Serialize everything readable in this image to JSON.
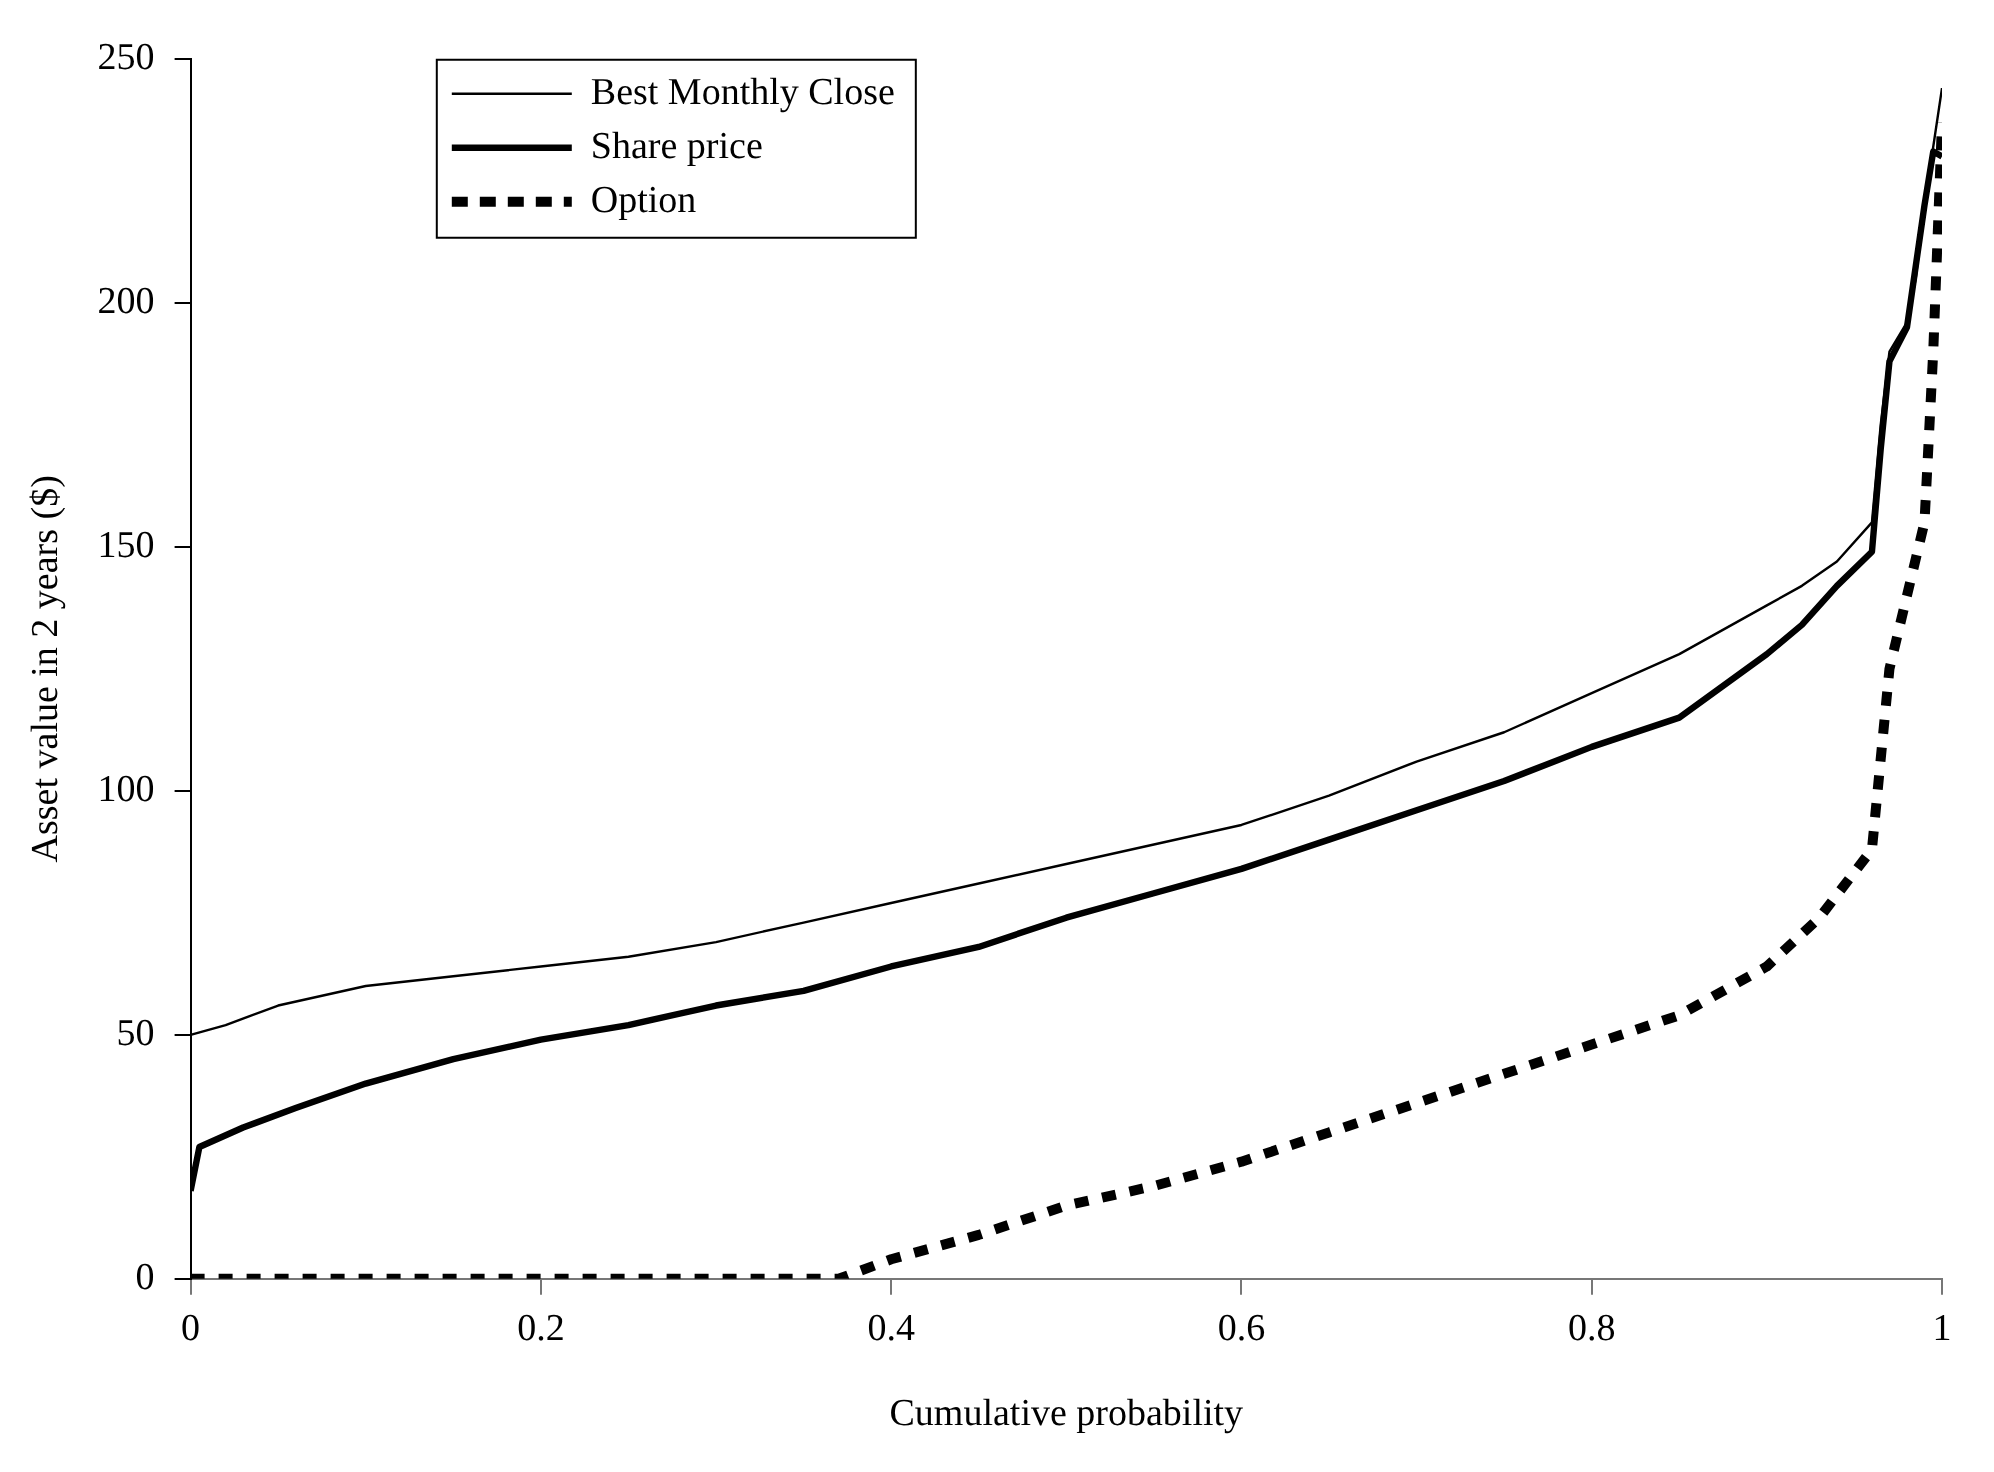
{
  "chart_data": {
    "type": "line",
    "xlabel": "Cumulative probability",
    "ylabel": "Asset value in 2 years ($)",
    "xlim": [
      0,
      1
    ],
    "xticks": [
      0,
      0.2,
      0.4,
      0.6,
      0.8,
      1
    ],
    "ylim": [
      0,
      250
    ],
    "yticks": [
      0,
      50,
      100,
      150,
      200,
      250
    ],
    "grid": false,
    "legend": "top left",
    "marker": "none",
    "series": [
      {
        "name": "Best Monthly Close",
        "color": "#000000",
        "line_style": "solid",
        "x": [
          0,
          0.02,
          0.05,
          0.1,
          0.15,
          0.2,
          0.25,
          0.3,
          0.35,
          0.4,
          0.45,
          0.5,
          0.55,
          0.6,
          0.65,
          0.7,
          0.75,
          0.8,
          0.85,
          0.9,
          0.92,
          0.94,
          0.96,
          0.965,
          0.97,
          0.98,
          0.985,
          0.99,
          1
        ],
        "values": [
          50,
          52,
          56,
          60,
          62,
          64,
          66,
          69,
          73,
          77,
          81,
          85,
          89,
          93,
          99,
          106,
          112,
          120,
          128,
          138,
          142,
          147,
          155,
          175,
          190,
          196,
          205,
          220,
          244
        ]
      },
      {
        "name": "Share price",
        "color": "#000000",
        "line_style": "solid",
        "x": [
          0,
          0.005,
          0.03,
          0.06,
          0.1,
          0.15,
          0.2,
          0.25,
          0.3,
          0.35,
          0.4,
          0.45,
          0.5,
          0.55,
          0.6,
          0.65,
          0.7,
          0.75,
          0.8,
          0.85,
          0.9,
          0.92,
          0.94,
          0.96,
          0.965,
          0.97,
          0.98,
          0.99,
          0.995,
          1
        ],
        "values": [
          18,
          27,
          31,
          35,
          40,
          45,
          49,
          52,
          56,
          59,
          64,
          68,
          74,
          79,
          84,
          90,
          96,
          102,
          109,
          115,
          128,
          134,
          142,
          149,
          170,
          188,
          195,
          220,
          231,
          230
        ]
      },
      {
        "name": "Option",
        "color": "#000000",
        "line_style": "dashed",
        "x": [
          0,
          0.1,
          0.2,
          0.3,
          0.37,
          0.4,
          0.45,
          0.5,
          0.55,
          0.6,
          0.65,
          0.7,
          0.75,
          0.8,
          0.85,
          0.9,
          0.93,
          0.96,
          0.97,
          0.98,
          0.99,
          0.995,
          1
        ],
        "values": [
          0,
          0,
          0,
          0,
          0,
          4,
          9,
          15,
          19,
          24,
          30,
          36,
          42,
          48,
          54,
          64,
          74,
          88,
          125,
          140,
          155,
          190,
          237
        ]
      }
    ]
  }
}
